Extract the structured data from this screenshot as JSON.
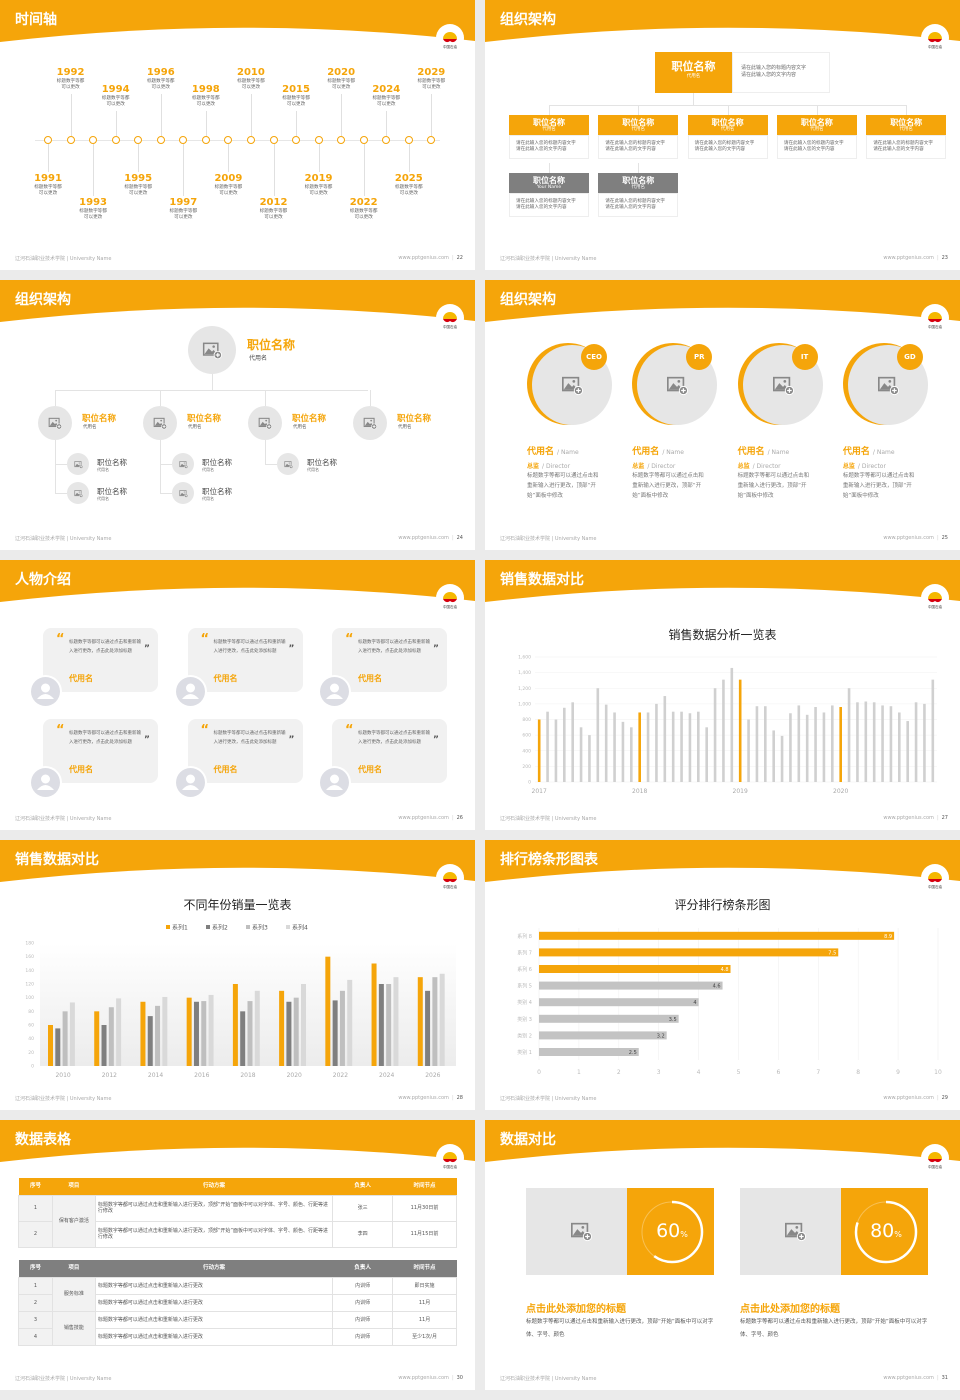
{
  "common": {
    "footer_left": "辽河石油职业技术学院 | University Name",
    "footer_right": "www.pptgenius.com",
    "logo_text": "中国石油",
    "colors": {
      "accent": "#f5a50a",
      "light_gray": "#d0d0d0",
      "dark_gray": "#7f7f7f",
      "card_gray": "#f1f1f1"
    }
  },
  "slides": [
    {
      "title": "时间轴",
      "page": "22",
      "events": [
        {
          "year": "1991",
          "desc": [
            "标题数字等都",
            "可以更改"
          ]
        },
        {
          "year": "1992",
          "desc": [
            "标题数字等都",
            "可以更改"
          ]
        },
        {
          "year": "1993",
          "desc": [
            "标题数字等都",
            "可以更改"
          ]
        },
        {
          "year": "1994",
          "desc": [
            "标题数字等都",
            "可以更改"
          ]
        },
        {
          "year": "1995",
          "desc": [
            "标题数字等都",
            "可以更改"
          ]
        },
        {
          "year": "1996",
          "desc": [
            "标题数字等都",
            "可以更改"
          ]
        },
        {
          "year": "1997",
          "desc": [
            "标题数字等都",
            "可以更改"
          ]
        },
        {
          "year": "1998",
          "desc": [
            "标题数字等都",
            "可以更改"
          ]
        },
        {
          "year": "2009",
          "desc": [
            "标题数字等都",
            "可以更改"
          ]
        },
        {
          "year": "2010",
          "desc": [
            "标题数字等都",
            "可以更改"
          ]
        },
        {
          "year": "2012",
          "desc": [
            "标题数字等都",
            "可以更改"
          ]
        },
        {
          "year": "2015",
          "desc": [
            "标题数字等都",
            "可以更改"
          ]
        },
        {
          "year": "2019",
          "desc": [
            "标题数字等都",
            "可以更改"
          ]
        },
        {
          "year": "2020",
          "desc": [
            "标题数字等都",
            "可以更改"
          ]
        },
        {
          "year": "2022",
          "desc": [
            "标题数字等都",
            "可以更改"
          ]
        },
        {
          "year": "2024",
          "desc": [
            "标题数字等都",
            "可以更改"
          ]
        },
        {
          "year": "2025",
          "desc": [
            "标题数字等都",
            "可以更改"
          ]
        },
        {
          "year": "2029",
          "desc": [
            "标题数字等都",
            "可以更改"
          ]
        }
      ]
    },
    {
      "title": "组织架构",
      "page": "23",
      "top": {
        "title": "职位名称",
        "sub": "代用名",
        "desc": [
          "请在此输入您的标题内容文字",
          "请在此输入您的文字内容"
        ]
      },
      "row1": [
        {
          "title": "职位名称",
          "sub": "代用名",
          "desc": [
            "请在此输入您的标题内容文字",
            "请在此输入您的文字内容"
          ]
        },
        {
          "title": "职位名称",
          "sub": "代用名",
          "desc": [
            "请在此输入您的标题内容文字",
            "请在此输入您的文字内容"
          ]
        },
        {
          "title": "职位名称",
          "sub": "代用名",
          "desc": [
            "请在此输入您的标题内容文字",
            "请在此输入您的文字内容"
          ]
        },
        {
          "title": "职位名称",
          "sub": "代用名",
          "desc": [
            "请在此输入您的标题内容文字",
            "请在此输入您的文字内容"
          ]
        },
        {
          "title": "职位名称",
          "sub": "代用名",
          "desc": [
            "请在此输入您的标题内容文字",
            "请在此输入您的文字内容"
          ]
        }
      ],
      "row2": [
        {
          "title": "职位名称",
          "sub": "Your Name",
          "desc": [
            "请在此输入您的标题内容文字",
            "请在此输入您的文字内容"
          ]
        },
        {
          "title": "职位名称",
          "sub": "代用名",
          "desc": [
            "请在此输入您的标题内容文字",
            "请在此输入您的文字内容"
          ]
        }
      ]
    },
    {
      "title": "组织架构",
      "page": "24",
      "top": {
        "title": "职位名称",
        "sub": "代用名"
      },
      "level2": [
        {
          "title": "职位名称",
          "sub": "代用名"
        },
        {
          "title": "职位名称",
          "sub": "代用名"
        },
        {
          "title": "职位名称",
          "sub": "代用名"
        },
        {
          "title": "职位名称",
          "sub": "代用名"
        }
      ],
      "level3": [
        {
          "parent": 0,
          "title": "职位名称",
          "sub": "代用名"
        },
        {
          "parent": 0,
          "title": "职位名称",
          "sub": "代用名"
        },
        {
          "parent": 1,
          "title": "职位名称",
          "sub": "代用名"
        },
        {
          "parent": 1,
          "title": "职位名称",
          "sub": "代用名"
        },
        {
          "parent": 2,
          "title": "职位名称",
          "sub": "代用名"
        }
      ]
    },
    {
      "title": "组织架构",
      "page": "25",
      "members": [
        {
          "badge": "CEO",
          "name": "代用名",
          "name_en": "/ Name",
          "role": "总监",
          "role_en": "/ Director",
          "desc": "标题数字等都可以通过点击和重新输入进行更改，顶部“开始”面板中修改"
        },
        {
          "badge": "PR",
          "name": "代用名",
          "name_en": "/ Name",
          "role": "总监",
          "role_en": "/ Director",
          "desc": "标题数字等都可以通过点击和重新输入进行更改，顶部“开始”面板中修改"
        },
        {
          "badge": "IT",
          "name": "代用名",
          "name_en": "/ Name",
          "role": "总监",
          "role_en": "/ Director",
          "desc": "标题数字等都可以通过点击和重新输入进行更改，顶部“开始”面板中修改"
        },
        {
          "badge": "GD",
          "name": "代用名",
          "name_en": "/ Name",
          "role": "总监",
          "role_en": "/ Director",
          "desc": "标题数字等都可以通过点击和重新输入进行更改，顶部“开始”面板中修改"
        }
      ]
    },
    {
      "title": "人物介绍",
      "page": "26",
      "cards": [
        {
          "quote": "标题数字等都可以通过点击和重新输入进行更改，点击此处添加标题",
          "name": "代用名"
        },
        {
          "quote": "标题数字等都可以通过点击和重新输入进行更改，点击此处添加标题",
          "name": "代用名"
        },
        {
          "quote": "标题数字等都可以通过点击和重新输入进行更改，点击此处添加标题",
          "name": "代用名"
        },
        {
          "quote": "标题数字等都可以通过点击和重新输入进行更改，点击此处添加标题",
          "name": "代用名"
        },
        {
          "quote": "标题数字等都可以通过点击和重新输入进行更改，点击此处添加标题",
          "name": "代用名"
        },
        {
          "quote": "标题数字等都可以通过点击和重新输入进行更改，点击此处添加标题",
          "name": "代用名"
        }
      ]
    },
    {
      "title": "销售数据对比",
      "page": "27"
    },
    {
      "title": "销售数据对比",
      "page": "28"
    },
    {
      "title": "排行榜条形图表",
      "page": "29"
    },
    {
      "title": "数据表格",
      "page": "30",
      "table1": {
        "headers": [
          "序号",
          "项目",
          "行动方案",
          "负责人",
          "时间节点"
        ],
        "rows": [
          {
            "no": "1",
            "project": "保有客户激活",
            "plan": "标题数字等都可以通过点击和重新输入进行更改，顶部“开始”面板中可以对字体、字号、颜色、行距等进行修改",
            "owner": "张三",
            "time": "11月30日前"
          },
          {
            "no": "2",
            "project": "保有客户激活",
            "plan": "标题数字等都可以通过点击和重新输入进行更改，顶部“开始”面板中可以对字体、字号、颜色、行距等进行修改",
            "owner": "李四",
            "time": "11月15日前"
          }
        ]
      },
      "table2": {
        "headers": [
          "序号",
          "项目",
          "行动方案",
          "负责人",
          "时间节点"
        ],
        "rows": [
          {
            "no": "1",
            "project": "服务标准",
            "plan": "标题数字等都可以通过点击和重新输入进行更改",
            "owner": "内训师",
            "time": "即日实施"
          },
          {
            "no": "2",
            "project": "服务标准",
            "plan": "标题数字等都可以通过点击和重新输入进行更改",
            "owner": "内训师",
            "time": "11月"
          },
          {
            "no": "3",
            "project": "销售技能",
            "plan": "标题数字等都可以通过点击和重新输入进行更改",
            "owner": "内训师",
            "time": "11月"
          },
          {
            "no": "4",
            "project": "销售技能",
            "plan": "标题数字等都可以通过点击和重新输入进行更改",
            "owner": "内训师",
            "time": "至少1次/月"
          }
        ]
      }
    },
    {
      "title": "数据对比",
      "page": "31",
      "stats": [
        {
          "value": 60,
          "value_text": "60",
          "unit": "%",
          "heading": "点击此处添加您的标题",
          "desc": "标题数字等都可以通过点击和重新输入进行更改，顶部“开始”面板中可以对字体、字号、颜色"
        },
        {
          "value": 80,
          "value_text": "80",
          "unit": "%",
          "heading": "点击此处添加您的标题",
          "desc": "标题数字等都可以通过点击和重新输入进行更改，顶部“开始”面板中可以对字体、字号、颜色"
        }
      ]
    }
  ],
  "chart_data": [
    {
      "type": "bar",
      "title": "销售数据分析一览表",
      "x_tick_labels": [
        "2017",
        "2018",
        "2019",
        "2020"
      ],
      "x_tick_positions": [
        0,
        12,
        24,
        36
      ],
      "values": [
        800,
        900,
        800,
        950,
        1020,
        700,
        600,
        1200,
        990,
        890,
        770,
        700,
        890,
        890,
        1000,
        1100,
        900,
        900,
        880,
        900,
        700,
        1200,
        1310,
        1460,
        1310,
        800,
        970,
        970,
        660,
        590,
        880,
        980,
        860,
        960,
        890,
        980,
        960,
        1200,
        1020,
        1030,
        1020,
        980,
        970,
        890,
        780,
        1020,
        1000,
        1310
      ],
      "highlighted": [
        0,
        12,
        24,
        36
      ],
      "ylim": [
        0,
        1600
      ],
      "y_ticks": [
        "0",
        "200",
        "400",
        "600",
        "800",
        "1,000",
        "1,200",
        "1,400",
        "1,600"
      ],
      "grid": true,
      "colors": {
        "highlight": "#f5a50a",
        "default": "#d0d0d0"
      }
    },
    {
      "type": "bar",
      "title": "不同年份销量一览表",
      "categories": [
        "2010",
        "2012",
        "2014",
        "2016",
        "2018",
        "2020",
        "2022",
        "2024",
        "2026"
      ],
      "series": [
        {
          "name": "系列1",
          "color": "#f5a50a",
          "values": [
            60,
            80,
            94,
            100,
            120,
            110,
            160,
            150,
            130
          ]
        },
        {
          "name": "系列2",
          "color": "#7f7f7f",
          "values": [
            55,
            60,
            73,
            94,
            80,
            94,
            96,
            120,
            110
          ]
        },
        {
          "name": "系列3",
          "color": "#bfbfbf",
          "values": [
            80,
            86,
            88,
            95,
            95,
            100,
            110,
            120,
            130
          ]
        },
        {
          "name": "系列4",
          "color": "#d9d9d9",
          "values": [
            93,
            99,
            101,
            104,
            110,
            120,
            126,
            130,
            135
          ]
        }
      ],
      "ylim": [
        0,
        180
      ],
      "y_ticks": [
        "0",
        "20",
        "40",
        "60",
        "80",
        "100",
        "120",
        "140",
        "160",
        "180"
      ],
      "legend": "top"
    },
    {
      "type": "bar",
      "orientation": "horizontal",
      "title": "评分排行榜条形图",
      "categories": [
        "类别 1",
        "类别 2",
        "类别 3",
        "类别 4",
        "系列 5",
        "系列 6",
        "系列 7",
        "系列 8"
      ],
      "values": [
        2.5,
        3.2,
        3.5,
        4,
        4.6,
        4.8,
        7.5,
        8.9
      ],
      "value_labels": [
        "2.5",
        "3.2",
        "3.5",
        "4",
        "4.6",
        "4.8",
        "7.5",
        "8.9"
      ],
      "highlighted": [
        5,
        6,
        7
      ],
      "xlim": [
        0,
        10
      ],
      "x_ticks": [
        "0",
        "1",
        "2",
        "3",
        "4",
        "5",
        "6",
        "7",
        "8",
        "9",
        "10"
      ],
      "grid": true
    }
  ]
}
